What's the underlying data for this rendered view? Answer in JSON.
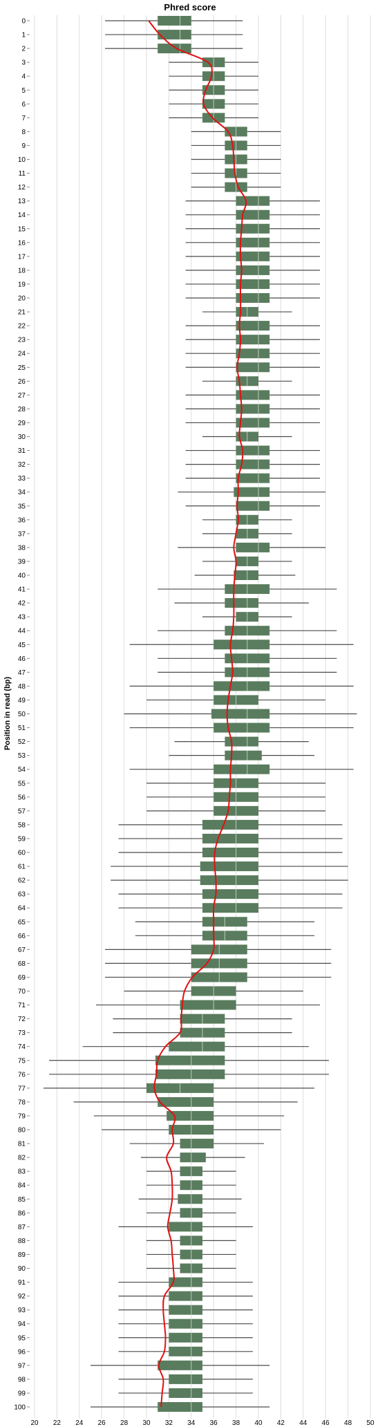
{
  "chart_data": {
    "type": "boxplot",
    "orientation": "horizontal",
    "title": "Phred score",
    "ylabel": "Position in read (bp)",
    "xlabel": "",
    "xlim": [
      20,
      50
    ],
    "x_ticks": [
      20,
      22,
      24,
      26,
      28,
      30,
      32,
      34,
      36,
      38,
      40,
      42,
      44,
      46,
      48,
      50
    ],
    "grid": true,
    "colors": {
      "box": "#5a7c5e",
      "whisker": "#4a4a4a",
      "mean_line": "#e01010"
    },
    "positions": [
      {
        "pos": 0,
        "lw": 26.3,
        "q1": 31,
        "median": 33,
        "q3": 34,
        "uw": 38.6,
        "mean": 30.2
      },
      {
        "pos": 1,
        "lw": 26.3,
        "q1": 31,
        "median": 33,
        "q3": 34,
        "uw": 38.6,
        "mean": 31.2
      },
      {
        "pos": 2,
        "lw": 26.3,
        "q1": 31,
        "median": 33,
        "q3": 34,
        "uw": 38.6,
        "mean": 32.7
      },
      {
        "pos": 3,
        "lw": 32,
        "q1": 35,
        "median": 36,
        "q3": 37,
        "uw": 40,
        "mean": 35.5
      },
      {
        "pos": 4,
        "lw": 32,
        "q1": 35,
        "median": 36,
        "q3": 37,
        "uw": 40,
        "mean": 35.8
      },
      {
        "pos": 5,
        "lw": 32,
        "q1": 35,
        "median": 36,
        "q3": 37,
        "uw": 40,
        "mean": 35.3
      },
      {
        "pos": 6,
        "lw": 32,
        "q1": 35,
        "median": 36,
        "q3": 37,
        "uw": 40,
        "mean": 35.1
      },
      {
        "pos": 7,
        "lw": 32,
        "q1": 35,
        "median": 36,
        "q3": 37,
        "uw": 40,
        "mean": 35.9
      },
      {
        "pos": 8,
        "lw": 34,
        "q1": 37,
        "median": 38,
        "q3": 39,
        "uw": 42,
        "mean": 37.3
      },
      {
        "pos": 9,
        "lw": 34,
        "q1": 37,
        "median": 38,
        "q3": 39,
        "uw": 42,
        "mean": 37.7
      },
      {
        "pos": 10,
        "lw": 34,
        "q1": 37,
        "median": 38,
        "q3": 39,
        "uw": 42,
        "mean": 37.8
      },
      {
        "pos": 11,
        "lw": 34,
        "q1": 37,
        "median": 38,
        "q3": 39,
        "uw": 42,
        "mean": 37.9
      },
      {
        "pos": 12,
        "lw": 34,
        "q1": 37,
        "median": 38,
        "q3": 39,
        "uw": 42,
        "mean": 38.2
      },
      {
        "pos": 13,
        "lw": 33.5,
        "q1": 38,
        "median": 40,
        "q3": 41,
        "uw": 45.5,
        "mean": 38.9
      },
      {
        "pos": 14,
        "lw": 33.5,
        "q1": 38,
        "median": 40,
        "q3": 41,
        "uw": 45.5,
        "mean": 38.6
      },
      {
        "pos": 15,
        "lw": 33.5,
        "q1": 38,
        "median": 40,
        "q3": 41,
        "uw": 45.5,
        "mean": 38.5
      },
      {
        "pos": 16,
        "lw": 33.5,
        "q1": 38,
        "median": 40,
        "q3": 41,
        "uw": 45.5,
        "mean": 38.4
      },
      {
        "pos": 17,
        "lw": 33.5,
        "q1": 38,
        "median": 40,
        "q3": 41,
        "uw": 45.5,
        "mean": 38.4
      },
      {
        "pos": 18,
        "lw": 33.5,
        "q1": 38,
        "median": 40,
        "q3": 41,
        "uw": 45.5,
        "mean": 38.5
      },
      {
        "pos": 19,
        "lw": 33.5,
        "q1": 38,
        "median": 40,
        "q3": 41,
        "uw": 45.5,
        "mean": 38.4
      },
      {
        "pos": 20,
        "lw": 33.5,
        "q1": 38,
        "median": 40,
        "q3": 41,
        "uw": 45.5,
        "mean": 38.4
      },
      {
        "pos": 21,
        "lw": 35,
        "q1": 38,
        "median": 39,
        "q3": 40,
        "uw": 43,
        "mean": 38.4
      },
      {
        "pos": 22,
        "lw": 33.5,
        "q1": 38,
        "median": 40,
        "q3": 41,
        "uw": 45.5,
        "mean": 38.3
      },
      {
        "pos": 23,
        "lw": 33.5,
        "q1": 38,
        "median": 40,
        "q3": 41,
        "uw": 45.5,
        "mean": 38.4
      },
      {
        "pos": 24,
        "lw": 33.5,
        "q1": 38,
        "median": 40,
        "q3": 41,
        "uw": 45.5,
        "mean": 38.3
      },
      {
        "pos": 25,
        "lw": 33.5,
        "q1": 38,
        "median": 40,
        "q3": 41,
        "uw": 45.5,
        "mean": 38.1
      },
      {
        "pos": 26,
        "lw": 35,
        "q1": 38,
        "median": 39,
        "q3": 40,
        "uw": 43,
        "mean": 38.3
      },
      {
        "pos": 27,
        "lw": 33.5,
        "q1": 38,
        "median": 40,
        "q3": 41,
        "uw": 45.5,
        "mean": 38.4
      },
      {
        "pos": 28,
        "lw": 33.5,
        "q1": 38,
        "median": 40,
        "q3": 41,
        "uw": 45.5,
        "mean": 38.5
      },
      {
        "pos": 29,
        "lw": 33.5,
        "q1": 38,
        "median": 40,
        "q3": 41,
        "uw": 45.5,
        "mean": 38.4
      },
      {
        "pos": 30,
        "lw": 35,
        "q1": 38,
        "median": 39,
        "q3": 40,
        "uw": 43,
        "mean": 38.3
      },
      {
        "pos": 31,
        "lw": 33.5,
        "q1": 38,
        "median": 40,
        "q3": 41,
        "uw": 45.5,
        "mean": 38.6
      },
      {
        "pos": 32,
        "lw": 33.5,
        "q1": 38,
        "median": 40,
        "q3": 41,
        "uw": 45.5,
        "mean": 38.5
      },
      {
        "pos": 33,
        "lw": 33.5,
        "q1": 38,
        "median": 40,
        "q3": 41,
        "uw": 45.5,
        "mean": 38.2
      },
      {
        "pos": 34,
        "lw": 32.8,
        "q1": 37.8,
        "median": 40,
        "q3": 41,
        "uw": 46,
        "mean": 38.2
      },
      {
        "pos": 35,
        "lw": 33.5,
        "q1": 38,
        "median": 40,
        "q3": 41,
        "uw": 45.5,
        "mean": 38.1
      },
      {
        "pos": 36,
        "lw": 35,
        "q1": 38,
        "median": 39,
        "q3": 40,
        "uw": 43,
        "mean": 38.2
      },
      {
        "pos": 37,
        "lw": 35,
        "q1": 38,
        "median": 39,
        "q3": 40,
        "uw": 43,
        "mean": 38.0
      },
      {
        "pos": 38,
        "lw": 32.8,
        "q1": 38,
        "median": 40,
        "q3": 41,
        "uw": 46,
        "mean": 37.8
      },
      {
        "pos": 39,
        "lw": 35,
        "q1": 38,
        "median": 39,
        "q3": 40,
        "uw": 43,
        "mean": 38.0
      },
      {
        "pos": 40,
        "lw": 34.3,
        "q1": 37.8,
        "median": 39,
        "q3": 40,
        "uw": 43.3,
        "mean": 37.9
      },
      {
        "pos": 41,
        "lw": 31,
        "q1": 37,
        "median": 39,
        "q3": 41,
        "uw": 47,
        "mean": 37.8
      },
      {
        "pos": 42,
        "lw": 32.5,
        "q1": 37,
        "median": 39,
        "q3": 40,
        "uw": 44.5,
        "mean": 37.8
      },
      {
        "pos": 43,
        "lw": 35,
        "q1": 38,
        "median": 39,
        "q3": 40,
        "uw": 43,
        "mean": 37.8
      },
      {
        "pos": 44,
        "lw": 31,
        "q1": 37,
        "median": 39,
        "q3": 41,
        "uw": 47,
        "mean": 37.7
      },
      {
        "pos": 45,
        "lw": 28.5,
        "q1": 36,
        "median": 39,
        "q3": 41,
        "uw": 48.5,
        "mean": 37.5
      },
      {
        "pos": 46,
        "lw": 31,
        "q1": 37,
        "median": 39,
        "q3": 41,
        "uw": 47,
        "mean": 37.6
      },
      {
        "pos": 47,
        "lw": 31,
        "q1": 37,
        "median": 39,
        "q3": 41,
        "uw": 47,
        "mean": 37.7
      },
      {
        "pos": 48,
        "lw": 28.5,
        "q1": 36,
        "median": 39,
        "q3": 41,
        "uw": 48.5,
        "mean": 37.5
      },
      {
        "pos": 49,
        "lw": 30,
        "q1": 36,
        "median": 38,
        "q3": 40,
        "uw": 46,
        "mean": 37.3
      },
      {
        "pos": 50,
        "lw": 28,
        "q1": 35.8,
        "median": 39,
        "q3": 41,
        "uw": 48.8,
        "mean": 37.2
      },
      {
        "pos": 51,
        "lw": 28.5,
        "q1": 36,
        "median": 39,
        "q3": 41,
        "uw": 48.5,
        "mean": 37.3
      },
      {
        "pos": 52,
        "lw": 32.5,
        "q1": 37,
        "median": 39,
        "q3": 40,
        "uw": 44.5,
        "mean": 37.6
      },
      {
        "pos": 53,
        "lw": 32,
        "q1": 37,
        "median": 39,
        "q3": 40.3,
        "uw": 45,
        "mean": 37.6
      },
      {
        "pos": 54,
        "lw": 28.5,
        "q1": 36,
        "median": 39,
        "q3": 41,
        "uw": 48.5,
        "mean": 37.5
      },
      {
        "pos": 55,
        "lw": 30,
        "q1": 36,
        "median": 38,
        "q3": 40,
        "uw": 46,
        "mean": 37.5
      },
      {
        "pos": 56,
        "lw": 30,
        "q1": 36,
        "median": 38,
        "q3": 40,
        "uw": 46,
        "mean": 37.4
      },
      {
        "pos": 57,
        "lw": 30,
        "q1": 36,
        "median": 38,
        "q3": 40,
        "uw": 46,
        "mean": 37.3
      },
      {
        "pos": 58,
        "lw": 27.5,
        "q1": 35,
        "median": 38,
        "q3": 40,
        "uw": 47.5,
        "mean": 36.9
      },
      {
        "pos": 59,
        "lw": 27.5,
        "q1": 35,
        "median": 38,
        "q3": 40,
        "uw": 47.5,
        "mean": 36.4
      },
      {
        "pos": 60,
        "lw": 27.5,
        "q1": 35,
        "median": 38,
        "q3": 40,
        "uw": 47.5,
        "mean": 36.1
      },
      {
        "pos": 61,
        "lw": 26.8,
        "q1": 34.8,
        "median": 38,
        "q3": 40,
        "uw": 48,
        "mean": 36.1
      },
      {
        "pos": 62,
        "lw": 26.8,
        "q1": 34.8,
        "median": 38,
        "q3": 40,
        "uw": 48,
        "mean": 36.2
      },
      {
        "pos": 63,
        "lw": 27.5,
        "q1": 35,
        "median": 38,
        "q3": 40,
        "uw": 47.5,
        "mean": 36.2
      },
      {
        "pos": 64,
        "lw": 27.5,
        "q1": 35,
        "median": 38,
        "q3": 40,
        "uw": 47.5,
        "mean": 36.0
      },
      {
        "pos": 65,
        "lw": 29,
        "q1": 35,
        "median": 37,
        "q3": 39,
        "uw": 45,
        "mean": 36.0
      },
      {
        "pos": 66,
        "lw": 29,
        "q1": 35,
        "median": 37,
        "q3": 39,
        "uw": 45,
        "mean": 36.0
      },
      {
        "pos": 67,
        "lw": 26.3,
        "q1": 34,
        "median": 36.5,
        "q3": 39,
        "uw": 46.5,
        "mean": 36.0
      },
      {
        "pos": 68,
        "lw": 26.3,
        "q1": 34,
        "median": 36.5,
        "q3": 39,
        "uw": 46.5,
        "mean": 35.4
      },
      {
        "pos": 69,
        "lw": 26.3,
        "q1": 34,
        "median": 36.5,
        "q3": 39,
        "uw": 46.5,
        "mean": 34.1
      },
      {
        "pos": 70,
        "lw": 28,
        "q1": 34,
        "median": 36,
        "q3": 38,
        "uw": 44,
        "mean": 33.4
      },
      {
        "pos": 71,
        "lw": 25.5,
        "q1": 33,
        "median": 36,
        "q3": 38,
        "uw": 45.5,
        "mean": 33.2
      },
      {
        "pos": 72,
        "lw": 27,
        "q1": 33,
        "median": 35,
        "q3": 37,
        "uw": 43,
        "mean": 33.1
      },
      {
        "pos": 73,
        "lw": 27,
        "q1": 33,
        "median": 35,
        "q3": 37,
        "uw": 43,
        "mean": 33.0
      },
      {
        "pos": 74,
        "lw": 24.3,
        "q1": 32,
        "median": 35,
        "q3": 37,
        "uw": 44.5,
        "mean": 31.7
      },
      {
        "pos": 75,
        "lw": 21.3,
        "q1": 30.8,
        "median": 34,
        "q3": 37,
        "uw": 46.3,
        "mean": 31.0
      },
      {
        "pos": 76,
        "lw": 21.3,
        "q1": 30.8,
        "median": 34,
        "q3": 37,
        "uw": 46.3,
        "mean": 30.9
      },
      {
        "pos": 77,
        "lw": 20.8,
        "q1": 30,
        "median": 33,
        "q3": 36,
        "uw": 45,
        "mean": 30.7
      },
      {
        "pos": 78,
        "lw": 23.5,
        "q1": 31,
        "median": 34,
        "q3": 36,
        "uw": 43.5,
        "mean": 31.2
      },
      {
        "pos": 79,
        "lw": 25.3,
        "q1": 31.8,
        "median": 34,
        "q3": 36,
        "uw": 42.3,
        "mean": 32.5
      },
      {
        "pos": 80,
        "lw": 26,
        "q1": 32,
        "median": 34,
        "q3": 36,
        "uw": 42,
        "mean": 32.3
      },
      {
        "pos": 81,
        "lw": 28.5,
        "q1": 33,
        "median": 34,
        "q3": 36,
        "uw": 40.5,
        "mean": 32.4
      },
      {
        "pos": 82,
        "lw": 29.5,
        "q1": 33,
        "median": 34,
        "q3": 35.3,
        "uw": 38.8,
        "mean": 31.8
      },
      {
        "pos": 83,
        "lw": 30,
        "q1": 33,
        "median": 34,
        "q3": 35,
        "uw": 38,
        "mean": 32.2
      },
      {
        "pos": 84,
        "lw": 30,
        "q1": 33,
        "median": 34,
        "q3": 35,
        "uw": 38,
        "mean": 32.3
      },
      {
        "pos": 85,
        "lw": 29.3,
        "q1": 32.8,
        "median": 34,
        "q3": 35,
        "uw": 38.5,
        "mean": 32.3
      },
      {
        "pos": 86,
        "lw": 30,
        "q1": 33,
        "median": 34,
        "q3": 35,
        "uw": 38,
        "mean": 32.1
      },
      {
        "pos": 87,
        "lw": 27.5,
        "q1": 32,
        "median": 34,
        "q3": 35,
        "uw": 39.5,
        "mean": 31.9
      },
      {
        "pos": 88,
        "lw": 30,
        "q1": 33,
        "median": 34,
        "q3": 35,
        "uw": 38,
        "mean": 32.2
      },
      {
        "pos": 89,
        "lw": 30,
        "q1": 33,
        "median": 34,
        "q3": 35,
        "uw": 38,
        "mean": 32.3
      },
      {
        "pos": 90,
        "lw": 30,
        "q1": 33,
        "median": 34,
        "q3": 35,
        "uw": 38,
        "mean": 32.4
      },
      {
        "pos": 91,
        "lw": 27.5,
        "q1": 32,
        "median": 34,
        "q3": 35,
        "uw": 39.5,
        "mean": 32.4
      },
      {
        "pos": 92,
        "lw": 27.5,
        "q1": 32,
        "median": 34,
        "q3": 35,
        "uw": 39.5,
        "mean": 31.6
      },
      {
        "pos": 93,
        "lw": 27.5,
        "q1": 32,
        "median": 34,
        "q3": 35,
        "uw": 39.5,
        "mean": 31.5
      },
      {
        "pos": 94,
        "lw": 27.5,
        "q1": 32,
        "median": 34,
        "q3": 35,
        "uw": 39.5,
        "mean": 31.6
      },
      {
        "pos": 95,
        "lw": 27.5,
        "q1": 32,
        "median": 34,
        "q3": 35,
        "uw": 39.5,
        "mean": 31.7
      },
      {
        "pos": 96,
        "lw": 27.5,
        "q1": 32,
        "median": 34,
        "q3": 35,
        "uw": 39.5,
        "mean": 31.6
      },
      {
        "pos": 97,
        "lw": 25,
        "q1": 31,
        "median": 34,
        "q3": 35,
        "uw": 41,
        "mean": 31.1
      },
      {
        "pos": 98,
        "lw": 27.5,
        "q1": 32,
        "median": 34,
        "q3": 35,
        "uw": 39.5,
        "mean": 31.5
      },
      {
        "pos": 99,
        "lw": 27.5,
        "q1": 32,
        "median": 34,
        "q3": 35,
        "uw": 39.5,
        "mean": 31.4
      },
      {
        "pos": 100,
        "lw": 25,
        "q1": 31,
        "median": 34,
        "q3": 35,
        "uw": 41,
        "mean": 31.3
      }
    ]
  }
}
